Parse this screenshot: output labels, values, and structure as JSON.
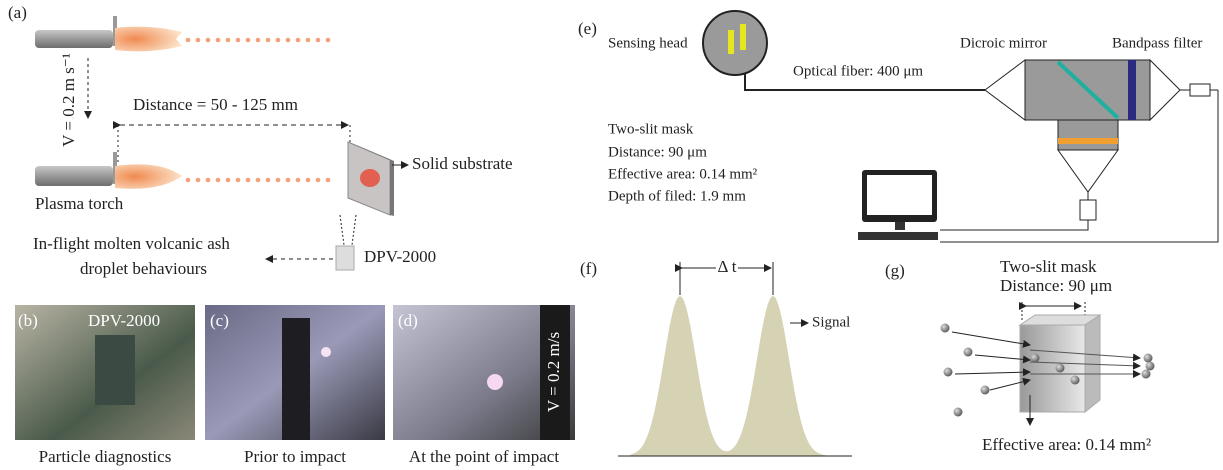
{
  "panel_a": {
    "label": "(a)",
    "speed": "V = 0.2 m s⁻¹",
    "distance": "Distance = 50 - 125 mm",
    "substrate": "Solid substrate",
    "torch": "Plasma torch",
    "behaviour_line1": "In-flight molten volcanic ash",
    "behaviour_line2": "droplet behaviours",
    "device": "DPV-2000"
  },
  "panel_b": {
    "label": "(b)",
    "overlay": "DPV-2000",
    "caption": "Particle diagnostics"
  },
  "panel_c": {
    "label": "(c)",
    "caption": "Prior to impact"
  },
  "panel_d": {
    "label": "(d)",
    "overlay": "V = 0.2 m/s",
    "caption": "At the point of impact"
  },
  "panel_e": {
    "label": "(e)",
    "sensing_head": "Sensing head",
    "fiber": "Optical fiber: 400 μm",
    "mirror": "Dicroic mirror",
    "filter": "Bandpass filter",
    "mask": "Two-slit mask",
    "distance": "Distance: 90 μm",
    "area": "Effective area: 0.14 mm²",
    "depth": "Depth of filed: 1.9 mm"
  },
  "panel_f": {
    "label": "(f)",
    "delta": "Δ t",
    "signal": "Signal"
  },
  "panel_g": {
    "label": "(g)",
    "mask": "Two-slit mask",
    "distance": "Distance: 90 μm",
    "area": "Effective area: 0.14 mm²"
  }
}
